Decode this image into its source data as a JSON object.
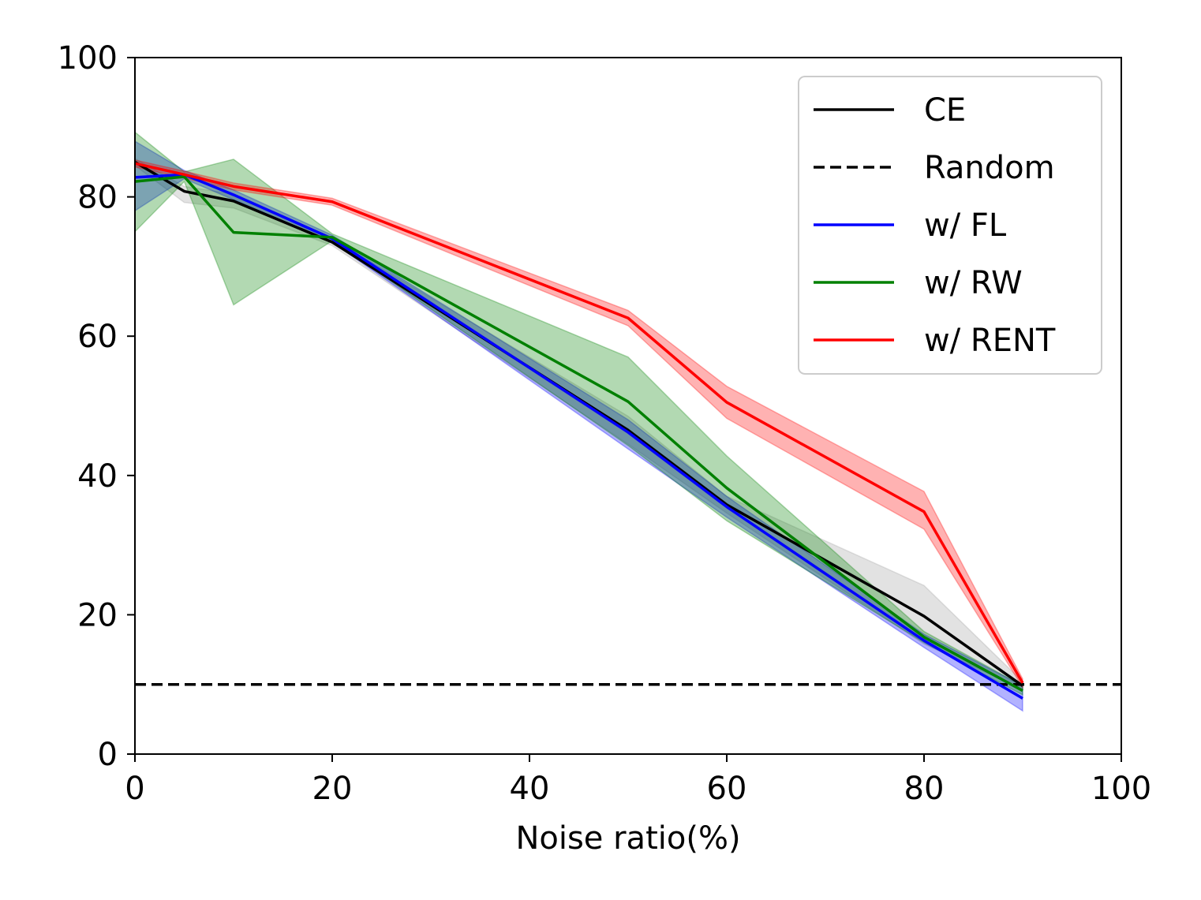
{
  "chart_data": {
    "type": "line",
    "title": "",
    "xlabel": "Noise ratio(%)",
    "ylabel": "",
    "xlim": [
      0,
      100
    ],
    "ylim": [
      0,
      100
    ],
    "xticks": [
      0,
      20,
      40,
      60,
      80,
      100
    ],
    "yticks": [
      0,
      20,
      40,
      60,
      80,
      100
    ],
    "grid": false,
    "legend_position": "top-right",
    "x": [
      0,
      5,
      10,
      20,
      50,
      60,
      80,
      90
    ],
    "series": [
      {
        "name": "CE",
        "color": "#000000",
        "style": "solid",
        "values": [
          85.0,
          80.8,
          79.4,
          73.5,
          46.5,
          35.8,
          19.8,
          9.8
        ],
        "lower": [
          84.5,
          79.2,
          78.4,
          73.0,
          44.5,
          34.6,
          15.8,
          9.3
        ],
        "upper": [
          85.5,
          81.5,
          80.4,
          74.0,
          48.5,
          37.0,
          24.2,
          10.4
        ],
        "band_color": "#9e9e9e"
      },
      {
        "name": "Random",
        "color": "#000000",
        "style": "dashed",
        "constant": 10
      },
      {
        "name": "w/ FL",
        "color": "#0000ff",
        "style": "solid",
        "values": [
          82.8,
          83.2,
          80.3,
          74.0,
          46.2,
          35.5,
          16.3,
          8.0
        ],
        "lower": [
          78.0,
          82.6,
          79.6,
          73.5,
          43.8,
          34.0,
          15.3,
          6.2
        ],
        "upper": [
          88.0,
          83.8,
          81.0,
          74.5,
          48.0,
          37.0,
          17.2,
          9.8
        ],
        "band_color": "#0000ff"
      },
      {
        "name": "w/ RW",
        "color": "#008000",
        "style": "solid",
        "values": [
          82.2,
          82.9,
          74.9,
          74.2,
          50.6,
          38.2,
          16.8,
          9.1
        ],
        "lower": [
          75.0,
          82.2,
          64.5,
          73.7,
          44.3,
          33.5,
          16.0,
          8.5
        ],
        "upper": [
          89.3,
          83.6,
          85.4,
          74.7,
          57.0,
          42.8,
          17.6,
          9.8
        ],
        "band_color": "#008000"
      },
      {
        "name": "w/ RENT",
        "color": "#ff0000",
        "style": "solid",
        "values": [
          84.8,
          83.2,
          81.5,
          79.3,
          62.6,
          50.5,
          34.8,
          10.2
        ],
        "lower": [
          84.3,
          82.7,
          81.0,
          78.8,
          61.5,
          48.2,
          32.3,
          9.6
        ],
        "upper": [
          85.3,
          83.7,
          82.0,
          79.8,
          63.7,
          52.8,
          37.7,
          10.8
        ],
        "band_color": "#ff0000"
      }
    ]
  }
}
